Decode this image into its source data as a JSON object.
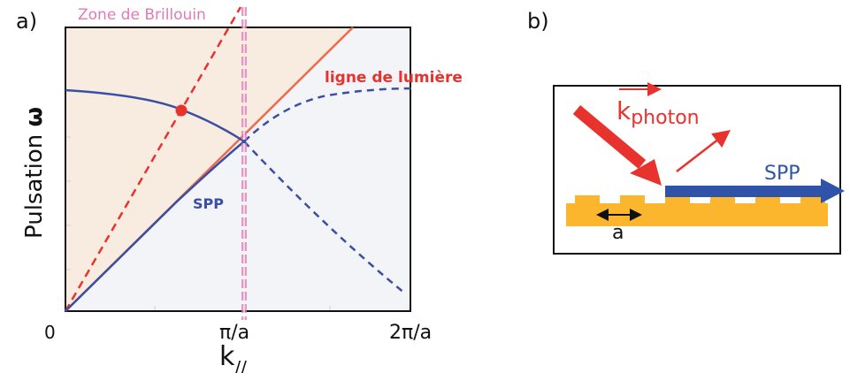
{
  "panel_a": {
    "label": "a)",
    "zone_label": "Zone de Brillouin",
    "light_line_label": "ligne de lumière",
    "spp_label": "SPP",
    "ylabel_text": "Pulsation ",
    "ylabel_symbol": "ω",
    "xlabel_base": "k",
    "xlabel_sub": "//",
    "tick_0": "0",
    "tick_pi_a": "π/a",
    "tick_2pi_a": "2π/a"
  },
  "panel_b": {
    "label": "b)",
    "k_base": "k",
    "k_sub": "photon",
    "spp_label": "SPP",
    "period_label": "a"
  },
  "colors": {
    "spp_blue": "#3a4fa3",
    "light_red": "#e8322d",
    "zone_pink": "#e07ab8",
    "shade": "#f7eadf",
    "metal_gold": "#fbb62e",
    "arrow_blue": "#2f53a8"
  }
}
